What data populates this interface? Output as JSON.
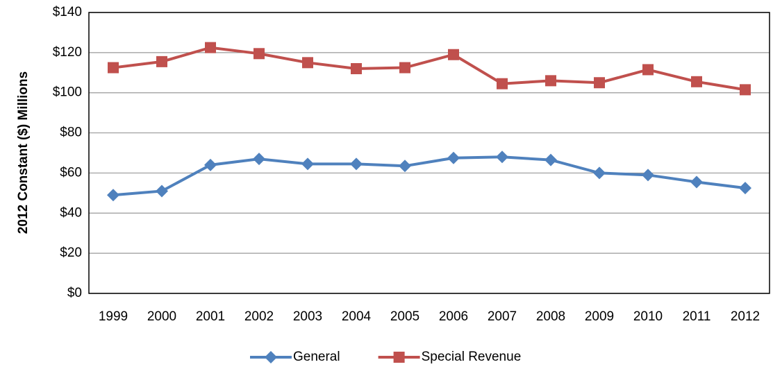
{
  "chart_data": {
    "type": "line",
    "y_label": "2012 Constant ($) Millions",
    "categories": [
      "1999",
      "2000",
      "2001",
      "2002",
      "2003",
      "2004",
      "2005",
      "2006",
      "2007",
      "2008",
      "2009",
      "2010",
      "2011",
      "2012"
    ],
    "series": [
      {
        "name": "General",
        "color": "#4f81bd",
        "marker": "diamond",
        "values": [
          49,
          51,
          64,
          67,
          64.5,
          64.5,
          63.5,
          67.5,
          68,
          66.5,
          60,
          59,
          55.5,
          52.5
        ]
      },
      {
        "name": "Special Revenue",
        "color": "#c0504d",
        "marker": "square",
        "values": [
          112.5,
          115.5,
          122.5,
          119.5,
          115,
          112,
          112.5,
          119,
          104.5,
          106,
          105,
          111.5,
          105.5,
          101.5
        ]
      }
    ],
    "ylim": [
      0,
      140
    ],
    "yticks": [
      {
        "value": 0,
        "label": "$0"
      },
      {
        "value": 20,
        "label": "$20"
      },
      {
        "value": 40,
        "label": "$40"
      },
      {
        "value": 60,
        "label": "$60"
      },
      {
        "value": 80,
        "label": "$80"
      },
      {
        "value": 100,
        "label": "$100"
      },
      {
        "value": 120,
        "label": "$120"
      },
      {
        "value": 140,
        "label": "$140"
      }
    ],
    "grid": true,
    "legend": "bottom"
  }
}
